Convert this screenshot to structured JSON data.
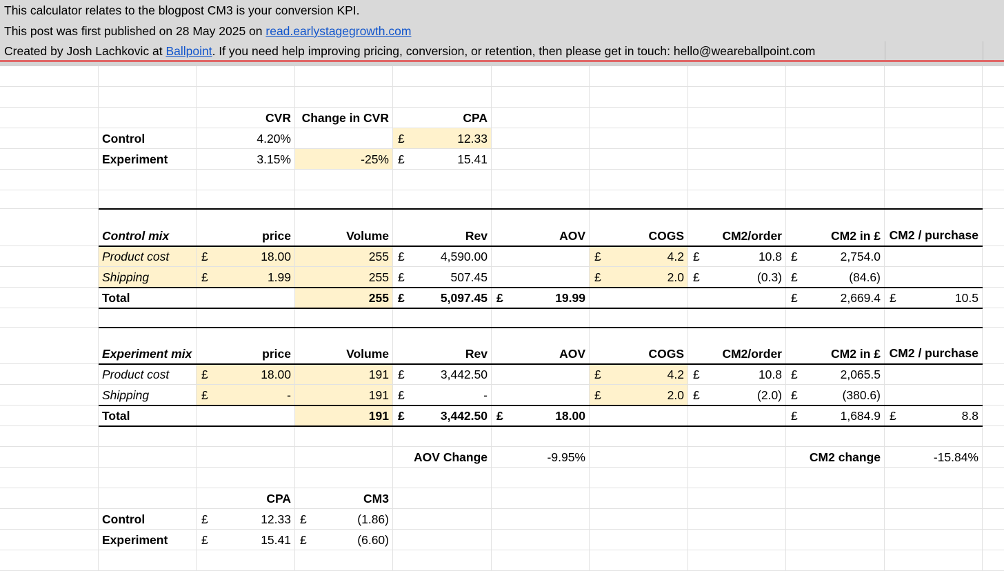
{
  "header": {
    "line1": "This calculator relates to the blogpost CM3 is your conversion KPI.",
    "line2_prefix": "This post was first published on 28 May 2025 on ",
    "line2_link": "read.earlystagegrowth.com",
    "line3_prefix": "Created by Josh Lachkovic at ",
    "line3_link": "Ballpoint",
    "line3_suffix": ". If you need help improving pricing, conversion, or retention, then please get in touch: hello@weareballpoint.com"
  },
  "colors": {
    "highlight": "#fff2cc",
    "link": "#1155cc",
    "frozen_line": "#e06666"
  },
  "rows": [
    [],
    [],
    [
      "",
      "",
      {
        "v": "CVR",
        "b": 1
      },
      {
        "v": "Change in CVR",
        "b": 1
      },
      {
        "v": "CPA",
        "b": 1
      }
    ],
    [
      "",
      {
        "v": "Control",
        "b": 1,
        "l": 1
      },
      "4.20%",
      "",
      {
        "c": "£",
        "v": "12.33",
        "hl": 1
      }
    ],
    [
      "",
      {
        "v": "Experiment",
        "b": 1,
        "l": 1
      },
      "3.15%",
      {
        "v": "-25%",
        "hl": 1
      },
      {
        "c": "£",
        "v": "15.41"
      }
    ],
    [],
    [],
    [
      "",
      {
        "v": "Control mix",
        "b": 1,
        "i": 1,
        "l": 1
      },
      {
        "v": "price",
        "b": 1
      },
      {
        "v": "Volume",
        "b": 1
      },
      {
        "v": "Rev",
        "b": 1
      },
      {
        "v": "AOV",
        "b": 1
      },
      {
        "v": "COGS",
        "b": 1
      },
      {
        "v": "CM2/order",
        "b": 1
      },
      {
        "v": "CM2 in £",
        "b": 1
      },
      {
        "v": "CM2 / purchase",
        "b": 1,
        "w": 1
      }
    ],
    [
      "",
      {
        "v": "Product cost",
        "i": 1,
        "l": 1,
        "hl": 1
      },
      {
        "c": "£",
        "v": "18.00",
        "hl": 1
      },
      {
        "v": "255",
        "hl": 1
      },
      {
        "c": "£",
        "v": "4,590.00"
      },
      "",
      {
        "c": "£",
        "v": "4.2",
        "hl": 1
      },
      {
        "c": "£",
        "v": "10.8"
      },
      {
        "c": "£",
        "v": "2,754.0"
      },
      ""
    ],
    [
      "",
      {
        "v": "Shipping",
        "i": 1,
        "l": 1,
        "hl": 1
      },
      {
        "c": "£",
        "v": "1.99",
        "hl": 1
      },
      {
        "v": "255",
        "hl": 1
      },
      {
        "c": "£",
        "v": "507.45"
      },
      "",
      {
        "c": "£",
        "v": "2.0",
        "hl": 1
      },
      {
        "c": "£",
        "v": "(0.3)"
      },
      {
        "c": "£",
        "v": "(84.6)"
      },
      ""
    ],
    [
      "",
      {
        "v": "Total",
        "b": 1,
        "l": 1
      },
      "",
      {
        "v": "255",
        "b": 1,
        "hl": 1
      },
      {
        "c": "£",
        "v": "5,097.45",
        "b": 1
      },
      {
        "c": "£",
        "v": "19.99",
        "b": 1
      },
      "",
      "",
      {
        "c": "£",
        "v": "2,669.4"
      },
      {
        "c": "£",
        "v": "10.5"
      }
    ],
    [],
    [
      "",
      {
        "v": "Experiment mix",
        "b": 1,
        "i": 1,
        "l": 1
      },
      {
        "v": "price",
        "b": 1
      },
      {
        "v": "Volume",
        "b": 1
      },
      {
        "v": "Rev",
        "b": 1
      },
      {
        "v": "AOV",
        "b": 1
      },
      {
        "v": "COGS",
        "b": 1
      },
      {
        "v": "CM2/order",
        "b": 1
      },
      {
        "v": "CM2 in £",
        "b": 1
      },
      {
        "v": "CM2 / purchase",
        "b": 1,
        "w": 1
      }
    ],
    [
      "",
      {
        "v": "Product cost",
        "i": 1,
        "l": 1
      },
      {
        "c": "£",
        "v": "18.00",
        "hl": 1
      },
      {
        "v": "191",
        "hl": 1
      },
      {
        "c": "£",
        "v": "3,442.50"
      },
      "",
      {
        "c": "£",
        "v": "4.2",
        "hl": 1
      },
      {
        "c": "£",
        "v": "10.8"
      },
      {
        "c": "£",
        "v": "2,065.5"
      },
      ""
    ],
    [
      "",
      {
        "v": "Shipping",
        "i": 1,
        "l": 1
      },
      {
        "c": "£",
        "v": "-",
        "hl": 1
      },
      {
        "v": "191",
        "hl": 1
      },
      {
        "c": "£",
        "v": "-"
      },
      "",
      {
        "c": "£",
        "v": "2.0",
        "hl": 1
      },
      {
        "c": "£",
        "v": "(2.0)"
      },
      {
        "c": "£",
        "v": "(380.6)"
      },
      ""
    ],
    [
      "",
      {
        "v": "Total",
        "b": 1,
        "l": 1
      },
      "",
      {
        "v": "191",
        "b": 1,
        "hl": 1
      },
      {
        "c": "£",
        "v": "3,442.50",
        "b": 1
      },
      {
        "c": "£",
        "v": "18.00",
        "b": 1
      },
      "",
      "",
      {
        "c": "£",
        "v": "1,684.9"
      },
      {
        "c": "£",
        "v": "8.8"
      }
    ],
    [],
    [
      "",
      "",
      "",
      "",
      {
        "v": "AOV Change",
        "b": 1
      },
      "-9.95%",
      "",
      "",
      {
        "v": "CM2 change",
        "b": 1
      },
      "-15.84%"
    ],
    [],
    [
      "",
      "",
      {
        "v": "CPA",
        "b": 1
      },
      {
        "v": "CM3",
        "b": 1
      }
    ],
    [
      "",
      {
        "v": "Control",
        "b": 1,
        "l": 1
      },
      {
        "c": "£",
        "v": "12.33"
      },
      {
        "c": "£",
        "v": "(1.86)"
      }
    ],
    [
      "",
      {
        "v": "Experiment",
        "b": 1,
        "l": 1
      },
      {
        "c": "£",
        "v": "15.41"
      },
      {
        "c": "£",
        "v": "(6.60)"
      }
    ],
    []
  ]
}
